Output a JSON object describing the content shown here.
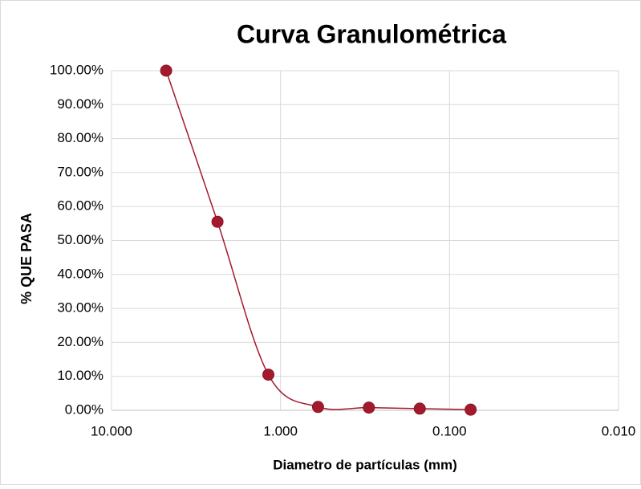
{
  "chart_data": {
    "type": "line",
    "title": "Curva Granulométrica",
    "x_label": "Diametro de partículas (mm)",
    "y_label": "% QUE PASA",
    "x": [
      4.75,
      2.36,
      1.18,
      0.6,
      0.3,
      0.15,
      0.075
    ],
    "values": [
      100,
      55.5,
      10.5,
      1.0,
      0.8,
      0.5,
      0.2
    ],
    "color": "#a31a2c",
    "xscale": "log",
    "xlim": [
      10,
      0.01
    ],
    "xticks": [
      {
        "value": 10,
        "label": "10.000"
      },
      {
        "value": 1,
        "label": "1.000"
      },
      {
        "value": 0.1,
        "label": "0.100"
      },
      {
        "value": 0.01,
        "label": "0.010"
      }
    ],
    "ylim": [
      0,
      100
    ],
    "yticks": [
      {
        "value": 0,
        "label": "0.00%"
      },
      {
        "value": 10,
        "label": "10.00%"
      },
      {
        "value": 20,
        "label": "20.00%"
      },
      {
        "value": 30,
        "label": "30.00%"
      },
      {
        "value": 40,
        "label": "40.00%"
      },
      {
        "value": 50,
        "label": "50.00%"
      },
      {
        "value": 60,
        "label": "60.00%"
      },
      {
        "value": 70,
        "label": "70.00%"
      },
      {
        "value": 80,
        "label": "80.00%"
      },
      {
        "value": 90,
        "label": "90.00%"
      },
      {
        "value": 100,
        "label": "100.00%"
      }
    ],
    "grid": true,
    "smooth": true
  }
}
